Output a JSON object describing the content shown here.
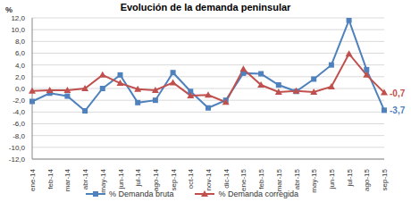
{
  "chart_data": {
    "type": "line",
    "title": "Evolución de la demanda peninsular",
    "y_label": "%",
    "categories": [
      "ene-14",
      "feb-14",
      "mar-14",
      "abr-14",
      "may-14",
      "jun-14",
      "jul-14",
      "ago-14",
      "sep-14",
      "oct-14",
      "nov-14",
      "dic-14",
      "ene-15",
      "feb-15",
      "mar-15",
      "abr-15",
      "may-15",
      "jun-15",
      "jul-15",
      "ago-15",
      "sep-15"
    ],
    "series": [
      {
        "name": "% Demanda bruta",
        "color": "#4F81BD",
        "marker": "square",
        "values": [
          -2.2,
          -0.8,
          -1.3,
          -3.8,
          0.0,
          2.3,
          -2.4,
          -2.0,
          2.7,
          -0.5,
          -3.3,
          -2.0,
          2.6,
          2.5,
          0.6,
          -0.5,
          1.6,
          4.0,
          11.6,
          3.2,
          -3.7
        ],
        "value_labels": [
          null,
          null,
          null,
          null,
          null,
          null,
          null,
          null,
          null,
          null,
          null,
          null,
          null,
          null,
          null,
          null,
          null,
          null,
          null,
          null,
          "-3,7"
        ]
      },
      {
        "name": "% Demanda corregida",
        "color": "#C0504D",
        "marker": "triangle",
        "values": [
          -0.4,
          -0.3,
          -0.3,
          0.0,
          2.3,
          0.9,
          -0.1,
          -0.3,
          1.0,
          -1.2,
          -1.1,
          -2.3,
          3.3,
          0.6,
          -0.6,
          -0.4,
          -0.6,
          0.3,
          5.9,
          2.3,
          -0.7
        ],
        "value_labels": [
          null,
          null,
          null,
          null,
          null,
          null,
          null,
          null,
          null,
          null,
          null,
          null,
          null,
          null,
          null,
          null,
          null,
          null,
          null,
          null,
          "-0,7"
        ]
      }
    ],
    "ylim": [
      -12,
      12
    ],
    "yticks": [
      {
        "value": -12,
        "label": "-12,0"
      },
      {
        "value": -10,
        "label": "-10,0"
      },
      {
        "value": -8,
        "label": "-8,0"
      },
      {
        "value": -6,
        "label": "-6,0"
      },
      {
        "value": -4,
        "label": "-4,0"
      },
      {
        "value": -2,
        "label": "-2,0"
      },
      {
        "value": 0,
        "label": "0,0"
      },
      {
        "value": 2,
        "label": "2,0"
      },
      {
        "value": 4,
        "label": "4,0"
      },
      {
        "value": 6,
        "label": "6,0"
      },
      {
        "value": 8,
        "label": "8,0"
      },
      {
        "value": 10,
        "label": "10,0"
      },
      {
        "value": 12,
        "label": "12,0"
      }
    ],
    "grid": true,
    "legend": "bottom",
    "data_labels": true
  }
}
